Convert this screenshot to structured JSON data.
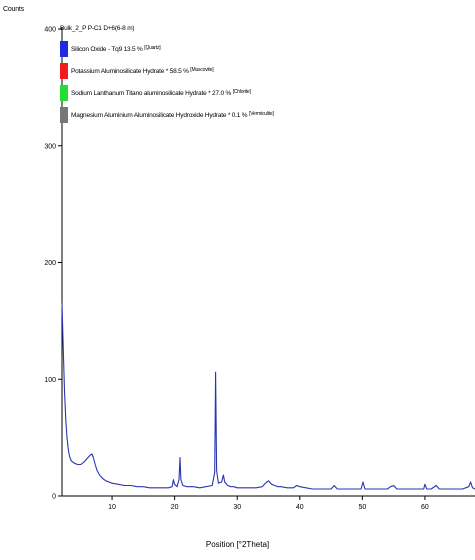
{
  "chart_data": {
    "type": "line",
    "title": "",
    "xlabel": "Position [°2Theta]",
    "ylabel": "Counts",
    "xlim": [
      2,
      68
    ],
    "ylim": [
      0,
      400
    ],
    "x_ticks": [
      10,
      20,
      30,
      40,
      50,
      60
    ],
    "y_ticks": [
      0,
      100,
      200,
      300,
      400
    ],
    "grid": false,
    "legend_position": "top-left",
    "sample_name": "Bulk_2_P P-C1 D+6(6-8 m)",
    "line_color": "#2a35b0",
    "series": [
      {
        "name": "Bulk_2_P P-C1 D+6(6-8 m)",
        "points": [
          [
            2.0,
            165
          ],
          [
            2.2,
            125
          ],
          [
            2.4,
            90
          ],
          [
            2.6,
            65
          ],
          [
            2.8,
            50
          ],
          [
            3.0,
            40
          ],
          [
            3.2,
            34
          ],
          [
            3.5,
            30
          ],
          [
            4.0,
            28
          ],
          [
            4.5,
            27
          ],
          [
            5.0,
            27
          ],
          [
            5.5,
            29
          ],
          [
            6.0,
            32
          ],
          [
            6.5,
            35
          ],
          [
            6.8,
            36
          ],
          [
            7.0,
            33
          ],
          [
            7.3,
            27
          ],
          [
            7.6,
            22
          ],
          [
            8.0,
            18
          ],
          [
            8.5,
            15
          ],
          [
            9.0,
            13
          ],
          [
            9.5,
            12
          ],
          [
            10.0,
            11
          ],
          [
            11.0,
            10
          ],
          [
            12.0,
            9
          ],
          [
            13.0,
            9
          ],
          [
            14.0,
            8
          ],
          [
            15.0,
            8
          ],
          [
            16.0,
            7
          ],
          [
            17.0,
            7
          ],
          [
            18.0,
            7
          ],
          [
            19.0,
            7
          ],
          [
            19.6,
            8
          ],
          [
            19.8,
            14
          ],
          [
            20.0,
            10
          ],
          [
            20.4,
            8
          ],
          [
            20.7,
            14
          ],
          [
            20.85,
            33
          ],
          [
            21.0,
            14
          ],
          [
            21.3,
            9
          ],
          [
            22.0,
            8
          ],
          [
            23.0,
            8
          ],
          [
            24.0,
            7
          ],
          [
            25.0,
            8
          ],
          [
            26.0,
            9
          ],
          [
            26.4,
            20
          ],
          [
            26.55,
            106
          ],
          [
            26.7,
            22
          ],
          [
            27.0,
            11
          ],
          [
            27.5,
            12
          ],
          [
            27.8,
            18
          ],
          [
            28.0,
            12
          ],
          [
            28.5,
            9
          ],
          [
            29.0,
            8
          ],
          [
            29.5,
            8
          ],
          [
            30.0,
            7
          ],
          [
            31.0,
            7
          ],
          [
            32.0,
            7
          ],
          [
            33.0,
            7
          ],
          [
            34.0,
            8
          ],
          [
            34.5,
            11
          ],
          [
            35.0,
            13
          ],
          [
            35.5,
            10
          ],
          [
            36.0,
            9
          ],
          [
            36.5,
            8
          ],
          [
            37.0,
            8
          ],
          [
            38.0,
            7
          ],
          [
            39.0,
            7
          ],
          [
            39.5,
            9
          ],
          [
            40.0,
            8
          ],
          [
            41.0,
            7
          ],
          [
            42.0,
            6
          ],
          [
            43.0,
            6
          ],
          [
            44.0,
            6
          ],
          [
            45.0,
            6
          ],
          [
            45.5,
            9
          ],
          [
            46.0,
            6
          ],
          [
            47.0,
            6
          ],
          [
            48.0,
            6
          ],
          [
            49.0,
            6
          ],
          [
            49.8,
            6
          ],
          [
            50.1,
            12
          ],
          [
            50.4,
            6
          ],
          [
            51.0,
            6
          ],
          [
            52.0,
            6
          ],
          [
            53.0,
            6
          ],
          [
            54.0,
            6
          ],
          [
            54.5,
            8
          ],
          [
            55.0,
            9
          ],
          [
            55.5,
            6
          ],
          [
            56.0,
            6
          ],
          [
            57.0,
            6
          ],
          [
            58.0,
            6
          ],
          [
            59.0,
            6
          ],
          [
            59.8,
            6
          ],
          [
            60.0,
            10
          ],
          [
            60.3,
            6
          ],
          [
            61.0,
            6
          ],
          [
            61.8,
            9
          ],
          [
            62.3,
            6
          ],
          [
            63.0,
            6
          ],
          [
            64.0,
            6
          ],
          [
            65.0,
            6
          ],
          [
            66.0,
            6
          ],
          [
            67.0,
            8
          ],
          [
            67.3,
            12
          ],
          [
            67.6,
            7
          ],
          [
            68.0,
            6
          ]
        ]
      }
    ],
    "legend": [
      {
        "color": "#1f2be0",
        "label": "Silicon Oxide - Tq9 13.5 %",
        "phase": "[Quartz]"
      },
      {
        "color": "#ee1c1c",
        "label": "Potassium Aluminosilicate Hydrate * 58.5 %",
        "phase": "[Muscovite]"
      },
      {
        "color": "#22dd33",
        "label": "Sodium Lanthanum Titano aluminosilicate Hydrate * 27.0 %",
        "phase": "[Chlorite]"
      },
      {
        "color": "#777777",
        "label": "Magnesium Aluminium Aluminosilicate Hydroxide Hydrate * 0.1 %",
        "phase": "[Vermiculite]"
      }
    ]
  }
}
